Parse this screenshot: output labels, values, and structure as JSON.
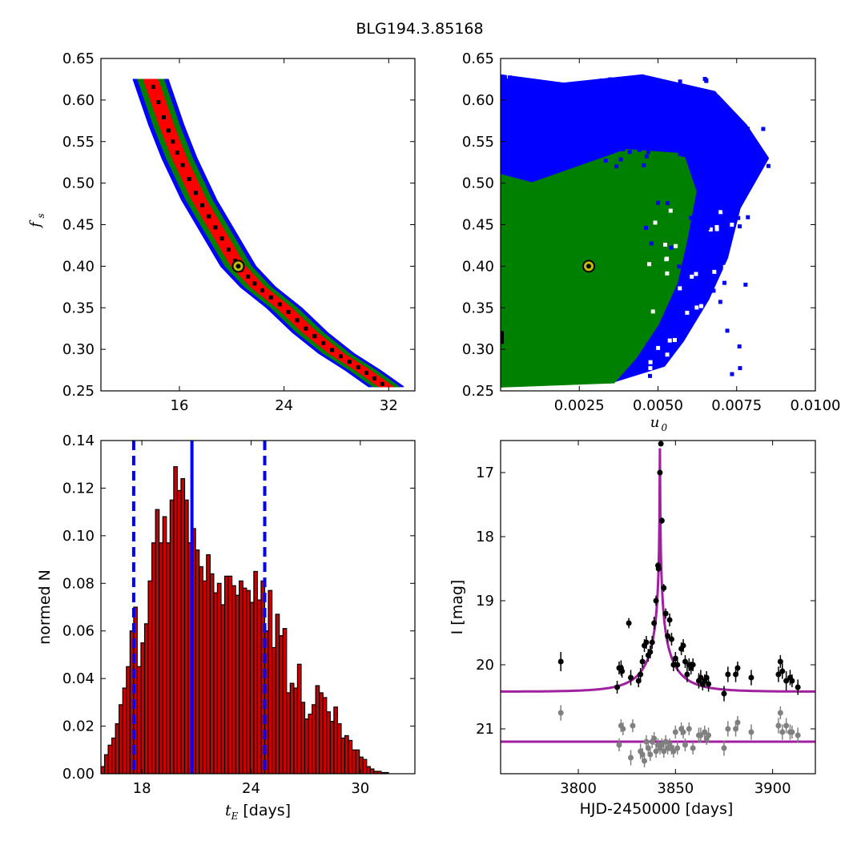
{
  "figure": {
    "title": "BLG194.3.85168"
  },
  "colors": {
    "red": "#ff0000",
    "green": "#008000",
    "blue": "#0000ff",
    "black": "#000000",
    "best_fit_fill": "#bfbf00",
    "model": "#a020a0",
    "gray": "#808080",
    "bar_edge": "#000000",
    "bar_fill": "#cc0000"
  },
  "chart_data": [
    {
      "id": "tE_fs",
      "type": "heatmap",
      "xlabel": "",
      "ylabel": "f",
      "ylabel_sub": "s",
      "xlim": [
        10,
        34
      ],
      "ylim": [
        0.25,
        0.65
      ],
      "xticks": [
        "16",
        "24",
        "32"
      ],
      "xtick_values": [
        16,
        24,
        32
      ],
      "yticks": [
        "0.25",
        "0.30",
        "0.35",
        "0.40",
        "0.45",
        "0.50",
        "0.55",
        "0.60",
        "0.65"
      ],
      "ytick_values": [
        0.25,
        0.3,
        0.35,
        0.4,
        0.45,
        0.5,
        0.55,
        0.6,
        0.65
      ],
      "band": {
        "centerline": [
          [
            13.8,
            0.625
          ],
          [
            15.0,
            0.57
          ],
          [
            16.0,
            0.53
          ],
          [
            17.5,
            0.48
          ],
          [
            19.0,
            0.44
          ],
          [
            20.5,
            0.4
          ],
          [
            22.0,
            0.375
          ],
          [
            24.0,
            0.35
          ],
          [
            26.0,
            0.32
          ],
          [
            28.0,
            0.295
          ],
          [
            30.0,
            0.275
          ],
          [
            31.8,
            0.255
          ]
        ],
        "layers": [
          {
            "color": "blue",
            "halfwidth_t": 1.35
          },
          {
            "color": "green",
            "halfwidth_t": 1.0
          },
          {
            "color": "red",
            "halfwidth_t": 0.55
          }
        ]
      },
      "best_fit": {
        "x": 20.5,
        "y": 0.4
      }
    },
    {
      "id": "u0_fs",
      "type": "heatmap",
      "xlabel": "u",
      "xlabel_sub": "0",
      "ylabel": "",
      "xlim": [
        0.0,
        0.01
      ],
      "ylim": [
        0.25,
        0.65
      ],
      "xticks": [
        "0.0025",
        "0.0050",
        "0.0075",
        "0.0100"
      ],
      "xtick_values": [
        0.0025,
        0.005,
        0.0075,
        0.01
      ],
      "yticks": [
        "0.25",
        "0.30",
        "0.35",
        "0.40",
        "0.45",
        "0.50",
        "0.55",
        "0.60",
        "0.65"
      ],
      "ytick_values": [
        0.25,
        0.3,
        0.35,
        0.4,
        0.45,
        0.5,
        0.55,
        0.6,
        0.65
      ],
      "regions": {
        "blue": [
          [
            0.0,
            0.26
          ],
          [
            0.0,
            0.63
          ],
          [
            0.002,
            0.62
          ],
          [
            0.0045,
            0.63
          ],
          [
            0.0068,
            0.61
          ],
          [
            0.0078,
            0.57
          ],
          [
            0.0085,
            0.53
          ],
          [
            0.0076,
            0.47
          ],
          [
            0.0072,
            0.41
          ],
          [
            0.0066,
            0.36
          ],
          [
            0.0058,
            0.31
          ],
          [
            0.0052,
            0.28
          ],
          [
            0.0035,
            0.26
          ]
        ],
        "green": [
          [
            0.0,
            0.255
          ],
          [
            0.0,
            0.51
          ],
          [
            0.001,
            0.5
          ],
          [
            0.0025,
            0.52
          ],
          [
            0.004,
            0.54
          ],
          [
            0.0058,
            0.535
          ],
          [
            0.0062,
            0.49
          ],
          [
            0.0059,
            0.43
          ],
          [
            0.0056,
            0.38
          ],
          [
            0.005,
            0.33
          ],
          [
            0.0043,
            0.29
          ],
          [
            0.0036,
            0.26
          ]
        ]
      },
      "best_fit": {
        "x": 0.0028,
        "y": 0.4
      }
    },
    {
      "id": "tE_hist",
      "type": "bar",
      "xlabel": "t",
      "xlabel_sub": "E",
      "xlabel_rest": " [days]",
      "ylabel": "normed N",
      "xlim": [
        15.75,
        33.0
      ],
      "ylim": [
        0.0,
        0.14
      ],
      "xticks": [
        "18",
        "24",
        "30"
      ],
      "xtick_values": [
        18,
        24,
        30
      ],
      "yticks": [
        "0.00",
        "0.02",
        "0.04",
        "0.06",
        "0.08",
        "0.10",
        "0.12",
        "0.14"
      ],
      "ytick_values": [
        0.0,
        0.02,
        0.04,
        0.06,
        0.08,
        0.1,
        0.12,
        0.14
      ],
      "bin_start": 15.75,
      "bin_width": 0.2,
      "values": [
        0.003,
        0.008,
        0.012,
        0.015,
        0.021,
        0.029,
        0.036,
        0.045,
        0.06,
        0.07,
        0.045,
        0.055,
        0.063,
        0.081,
        0.097,
        0.111,
        0.097,
        0.108,
        0.097,
        0.115,
        0.129,
        0.119,
        0.124,
        0.115,
        0.097,
        0.103,
        0.094,
        0.087,
        0.081,
        0.092,
        0.084,
        0.076,
        0.08,
        0.071,
        0.083,
        0.083,
        0.079,
        0.075,
        0.081,
        0.078,
        0.077,
        0.072,
        0.085,
        0.073,
        0.081,
        0.06,
        0.077,
        0.053,
        0.067,
        0.058,
        0.061,
        0.034,
        0.038,
        0.036,
        0.046,
        0.03,
        0.023,
        0.025,
        0.029,
        0.037,
        0.034,
        0.032,
        0.026,
        0.022,
        0.028,
        0.021,
        0.015,
        0.016,
        0.014,
        0.01,
        0.01,
        0.007,
        0.006,
        0.003,
        0.002,
        0.001,
        0.001,
        0.0005,
        0.0005
      ],
      "median_line": 20.75,
      "interval_lines": [
        17.55,
        24.75
      ]
    },
    {
      "id": "lightcurve",
      "type": "scatter",
      "xlabel": "HJD-2450000 [days]",
      "ylabel": "I [mag]",
      "xlim": [
        3760,
        3922
      ],
      "ylim": [
        21.7,
        16.5
      ],
      "xticks": [
        "3800",
        "3850",
        "3900"
      ],
      "xtick_values": [
        3800,
        3850,
        3900
      ],
      "yticks": [
        "17",
        "18",
        "19",
        "20",
        "21"
      ],
      "ytick_values": [
        17,
        18,
        19,
        20,
        21
      ],
      "model": {
        "baseline": 20.42,
        "peak_mag": 16.62,
        "t0": 3842.0,
        "u0": 0.0028,
        "tE": 20.5,
        "fs": 0.4
      },
      "residual_baseline": 21.2,
      "points": [
        [
          3791,
          19.95,
          0.15
        ],
        [
          3820,
          20.35,
          0.1
        ],
        [
          3821,
          20.05,
          0.1
        ],
        [
          3822,
          20.05,
          0.12
        ],
        [
          3822.5,
          20.1,
          0.1
        ],
        [
          3826,
          19.35,
          0.08
        ],
        [
          3827,
          20.2,
          0.12
        ],
        [
          3831,
          20.25,
          0.1
        ],
        [
          3832,
          20.15,
          0.1
        ],
        [
          3833,
          19.95,
          0.1
        ],
        [
          3834,
          19.7,
          0.1
        ],
        [
          3835,
          19.65,
          0.1
        ],
        [
          3836,
          19.85,
          0.1
        ],
        [
          3837,
          19.8,
          0.1
        ],
        [
          3838,
          19.65,
          0.1
        ],
        [
          3839,
          19.35,
          0.1
        ],
        [
          3840,
          19.0,
          0.08
        ],
        [
          3841,
          18.45,
          0.05
        ],
        [
          3841.3,
          18.5,
          0.05
        ],
        [
          3842,
          17.0,
          0.04
        ],
        [
          3842.5,
          16.55,
          0.04
        ],
        [
          3843,
          17.75,
          0.05
        ],
        [
          3844,
          18.8,
          0.06
        ],
        [
          3845,
          19.2,
          0.08
        ],
        [
          3846,
          19.55,
          0.1
        ],
        [
          3847,
          19.3,
          0.1
        ],
        [
          3848,
          19.6,
          0.1
        ],
        [
          3849,
          20.0,
          0.1
        ],
        [
          3850,
          19.9,
          0.1
        ],
        [
          3851,
          20.0,
          0.1
        ],
        [
          3853,
          19.75,
          0.1
        ],
        [
          3854,
          19.7,
          0.1
        ],
        [
          3855,
          19.95,
          0.1
        ],
        [
          3856,
          20.15,
          0.12
        ],
        [
          3857,
          20.0,
          0.1
        ],
        [
          3858,
          20.05,
          0.1
        ],
        [
          3859,
          20.0,
          0.1
        ],
        [
          3862,
          20.25,
          0.12
        ],
        [
          3863,
          20.2,
          0.12
        ],
        [
          3864,
          20.3,
          0.1
        ],
        [
          3865,
          20.25,
          0.1
        ],
        [
          3866,
          20.2,
          0.1
        ],
        [
          3867,
          20.3,
          0.12
        ],
        [
          3875,
          20.45,
          0.12
        ],
        [
          3877,
          20.15,
          0.12
        ],
        [
          3881,
          20.15,
          0.12
        ],
        [
          3882,
          20.05,
          0.1
        ],
        [
          3889,
          20.2,
          0.12
        ],
        [
          3903,
          20.15,
          0.12
        ],
        [
          3904,
          19.95,
          0.1
        ],
        [
          3905,
          20.1,
          0.12
        ],
        [
          3907,
          20.25,
          0.15
        ],
        [
          3909,
          20.2,
          0.12
        ],
        [
          3910,
          20.25,
          0.1
        ],
        [
          3913,
          20.35,
          0.12
        ]
      ],
      "residual_points": [
        [
          3791,
          20.75,
          0.12
        ],
        [
          3821,
          21.25,
          0.1
        ],
        [
          3822,
          20.95,
          0.1
        ],
        [
          3823,
          21.0,
          0.1
        ],
        [
          3827,
          21.45,
          0.12
        ],
        [
          3828,
          20.95,
          0.1
        ],
        [
          3832,
          21.35,
          0.12
        ],
        [
          3833,
          21.4,
          0.1
        ],
        [
          3834,
          21.5,
          0.1
        ],
        [
          3835,
          21.2,
          0.1
        ],
        [
          3836,
          21.3,
          0.1
        ],
        [
          3837,
          21.4,
          0.1
        ],
        [
          3838,
          21.2,
          0.1
        ],
        [
          3839,
          21.15,
          0.1
        ],
        [
          3840,
          21.35,
          0.1
        ],
        [
          3841,
          21.25,
          0.1
        ],
        [
          3842,
          21.3,
          0.1
        ],
        [
          3843,
          21.25,
          0.1
        ],
        [
          3844,
          21.35,
          0.1
        ],
        [
          3845,
          21.2,
          0.1
        ],
        [
          3846,
          21.3,
          0.1
        ],
        [
          3847,
          21.25,
          0.1
        ],
        [
          3848,
          21.3,
          0.1
        ],
        [
          3849,
          21.35,
          0.1
        ],
        [
          3850,
          21.05,
          0.1
        ],
        [
          3851,
          21.3,
          0.1
        ],
        [
          3853,
          21.0,
          0.1
        ],
        [
          3854,
          21.05,
          0.1
        ],
        [
          3855,
          21.25,
          0.1
        ],
        [
          3857,
          21.0,
          0.1
        ],
        [
          3859,
          21.3,
          0.1
        ],
        [
          3862,
          21.1,
          0.12
        ],
        [
          3863,
          21.1,
          0.12
        ],
        [
          3865,
          21.05,
          0.1
        ],
        [
          3866,
          21.15,
          0.1
        ],
        [
          3867,
          21.1,
          0.12
        ],
        [
          3875,
          21.3,
          0.12
        ],
        [
          3877,
          21.0,
          0.12
        ],
        [
          3881,
          21.0,
          0.12
        ],
        [
          3882,
          20.9,
          0.1
        ],
        [
          3889,
          21.05,
          0.12
        ],
        [
          3903,
          20.95,
          0.12
        ],
        [
          3904,
          20.75,
          0.1
        ],
        [
          3905,
          21.05,
          0.12
        ],
        [
          3907,
          20.95,
          0.12
        ],
        [
          3909,
          21.05,
          0.12
        ],
        [
          3910,
          21.05,
          0.1
        ],
        [
          3913,
          21.1,
          0.12
        ]
      ]
    }
  ]
}
